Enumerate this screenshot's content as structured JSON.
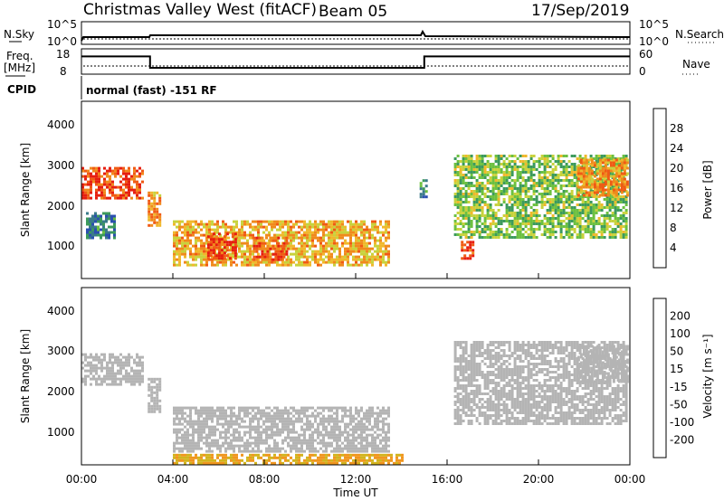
{
  "header": {
    "station": "Christmas Valley West (fitACF)",
    "beam": "Beam 05",
    "date": "17/Sep/2019"
  },
  "top_panel": {
    "nsky_label": "N.Sky",
    "nsky_ticks": [
      "10^5",
      "10^0"
    ],
    "nsearch_label": "N.Search",
    "nsearch_ticks": [
      "10^5",
      "10^0"
    ],
    "freq_label_1": "Freq.",
    "freq_label_2": "[MHz]",
    "freq_ticks": [
      "18",
      "8"
    ],
    "nave_label": "Nave",
    "nave_ticks": [
      "60",
      "0"
    ],
    "cpid_label": "CPID",
    "cpid_text": "normal (fast) -151 RF",
    "freq_series": {
      "x_hours": [
        0,
        3,
        3,
        15,
        15,
        24
      ],
      "mhz": [
        15,
        15,
        10.5,
        10.5,
        15,
        15
      ]
    }
  },
  "power_panel": {
    "ylabel": "Slant Range [km]",
    "yticks": [
      "4000",
      "3000",
      "2000",
      "1000"
    ],
    "colorbar_label": "Power [dB]",
    "colorbar_ticks": [
      "28",
      "24",
      "20",
      "16",
      "12",
      "8",
      "4"
    ],
    "colors": [
      "#1414e6",
      "#2b4fb0",
      "#3a7a8a",
      "#3c9a5c",
      "#6cc040",
      "#c8d23c",
      "#f0b82c",
      "#f08a1c",
      "#f05a14",
      "#e61e10"
    ]
  },
  "velocity_panel": {
    "ylabel": "Slant Range [km]",
    "yticks": [
      "4000",
      "3000",
      "2000",
      "1000"
    ],
    "colorbar_label": "Velocity [m s⁻¹]",
    "colorbar_ticks": [
      "200",
      "100",
      "50",
      "15",
      "-15",
      "-50",
      "-100",
      "-200"
    ],
    "colors": [
      "#2020d0",
      "#2a6ab0",
      "#2f8c4c",
      "#66c03a",
      "#b4b4b4",
      "#d2b41e",
      "#f0961e",
      "#f05a14",
      "#e61414"
    ]
  },
  "x_axis": {
    "label": "Time UT",
    "ticks": [
      "00:00",
      "04:00",
      "08:00",
      "12:00",
      "16:00",
      "20:00",
      "00:00"
    ]
  },
  "chart_data": {
    "type": "heatmap",
    "x_range_hours": [
      0,
      24
    ],
    "y_range_km": [
      180,
      4500
    ],
    "power_regions_dB": [
      {
        "t0": 0.0,
        "t1": 2.7,
        "r0": 2150,
        "r1": 2900,
        "power": 26
      },
      {
        "t0": 0.2,
        "t1": 1.5,
        "r0": 1200,
        "r1": 1800,
        "power": 8
      },
      {
        "t0": 2.9,
        "t1": 3.4,
        "r0": 1500,
        "r1": 2300,
        "power": 22
      },
      {
        "t0": 4.0,
        "t1": 13.5,
        "r0": 500,
        "r1": 1600,
        "power": 20
      },
      {
        "t0": 5.5,
        "t1": 6.8,
        "r0": 700,
        "r1": 1300,
        "power": 28
      },
      {
        "t0": 7.5,
        "t1": 9.0,
        "r0": 650,
        "r1": 1200,
        "power": 26
      },
      {
        "t0": 14.8,
        "t1": 15.1,
        "r0": 2200,
        "r1": 2600,
        "power": 10
      },
      {
        "t0": 16.3,
        "t1": 23.9,
        "r0": 1200,
        "r1": 3200,
        "power": 14
      },
      {
        "t0": 16.6,
        "t1": 17.1,
        "r0": 700,
        "r1": 1100,
        "power": 28
      },
      {
        "t0": 21.7,
        "t1": 23.9,
        "r0": 2200,
        "r1": 3100,
        "power": 22
      }
    ],
    "velocity_regions_ms": [
      {
        "t0": 0.0,
        "t1": 2.7,
        "r0": 2150,
        "r1": 2900,
        "velocity": 0
      },
      {
        "t0": 2.9,
        "t1": 3.4,
        "r0": 1500,
        "r1": 2300,
        "velocity": 0
      },
      {
        "t0": 4.0,
        "t1": 13.5,
        "r0": 500,
        "r1": 1600,
        "velocity": 0
      },
      {
        "t0": 4.0,
        "t1": 14.0,
        "r0": 250,
        "r1": 450,
        "velocity": -50
      },
      {
        "t0": 16.3,
        "t1": 23.9,
        "r0": 1200,
        "r1": 3200,
        "velocity": 0
      },
      {
        "t0": 21.7,
        "t1": 23.9,
        "r0": 2200,
        "r1": 3100,
        "velocity": 0
      }
    ]
  }
}
